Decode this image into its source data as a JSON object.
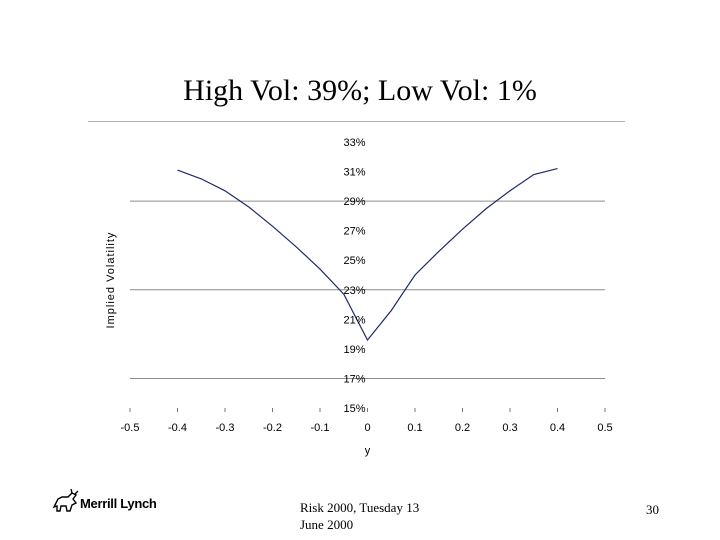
{
  "slide": {
    "title": "High Vol: 39%; Low Vol: 1%",
    "footer_line1": "Risk 2000, Tuesday 13",
    "footer_line2": "June 2000",
    "page_number": "30",
    "logo_text": "Merrill Lynch"
  },
  "chart_data": {
    "type": "line",
    "title": "",
    "xlabel": "y",
    "ylabel": "Implied Volatility",
    "xlim": [
      -0.5,
      0.5
    ],
    "ylim": [
      15,
      33
    ],
    "x_ticks": [
      "-0.5",
      "-0.4",
      "-0.3",
      "-0.2",
      "-0.1",
      "0",
      "0.1",
      "0.2",
      "0.3",
      "0.4",
      "0.5"
    ],
    "y_ticks": [
      "15%",
      "17%",
      "19%",
      "21%",
      "23%",
      "25%",
      "27%",
      "29%",
      "31%",
      "33%"
    ],
    "gridlines_y": [
      17,
      23,
      29
    ],
    "series": [
      {
        "x": [
          -0.4,
          -0.35,
          -0.3,
          -0.25,
          -0.2,
          -0.15,
          -0.1,
          -0.05,
          0,
          0.05,
          0.1,
          0.15,
          0.2,
          0.25,
          0.3,
          0.35,
          0.4
        ],
        "y": [
          31.1,
          30.5,
          29.7,
          28.6,
          27.3,
          25.9,
          24.4,
          22.7,
          19.6,
          21.6,
          24.0,
          25.6,
          27.1,
          28.5,
          29.7,
          30.8,
          31.2
        ]
      }
    ]
  }
}
